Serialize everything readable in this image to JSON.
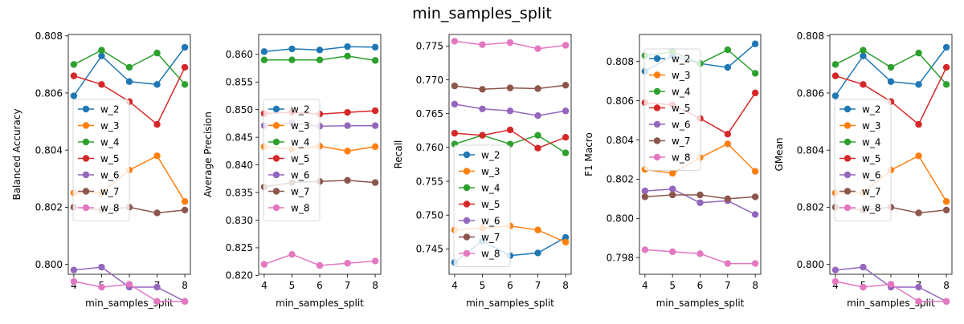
{
  "title": "min_samples_split",
  "colors": {
    "w_2": "#1f77b4",
    "w_3": "#ff7f0e",
    "w_4": "#2ca02c",
    "w_5": "#d62728",
    "w_6": "#9467bd",
    "w_7": "#8c564b",
    "w_8": "#e377c2"
  },
  "chart_data": [
    {
      "type": "line",
      "title": "",
      "xlabel": "min_samples_split",
      "ylabel": "Balanced Accuracy",
      "x": [
        4,
        5,
        6,
        7,
        8
      ],
      "xticks": [
        "4",
        "5",
        "6",
        "7",
        "8"
      ],
      "ylim": [
        0.79965,
        0.80805
      ],
      "yticks": [
        "0.800",
        "0.802",
        "0.804",
        "0.806",
        "0.808"
      ],
      "ytick_values": [
        0.8,
        0.802,
        0.804,
        0.806,
        0.808
      ],
      "legend": "center-left",
      "series": [
        {
          "name": "w_2",
          "values": [
            0.8059,
            0.8073,
            0.8064,
            0.8063,
            0.8076
          ]
        },
        {
          "name": "w_3",
          "values": [
            0.8025,
            0.8025,
            0.8033,
            0.8038,
            0.8022
          ]
        },
        {
          "name": "w_4",
          "values": [
            0.807,
            0.8075,
            0.8069,
            0.8074,
            0.8063
          ]
        },
        {
          "name": "w_5",
          "values": [
            0.8066,
            0.8063,
            0.8057,
            0.8049,
            0.8069
          ]
        },
        {
          "name": "w_6",
          "values": [
            0.7998,
            0.7999,
            0.7992,
            0.7992,
            0.7987
          ]
        },
        {
          "name": "w_7",
          "values": [
            0.802,
            0.8019,
            0.802,
            0.8018,
            0.8019
          ]
        },
        {
          "name": "w_8",
          "values": [
            0.7994,
            0.7992,
            0.7993,
            0.7987,
            0.7987
          ]
        }
      ]
    },
    {
      "type": "line",
      "title": "",
      "xlabel": "min_samples_split",
      "ylabel": "Average Precision",
      "x": [
        4,
        5,
        6,
        7,
        8
      ],
      "xticks": [
        "4",
        "5",
        "6",
        "7",
        "8"
      ],
      "ylim": [
        0.8202,
        0.8636
      ],
      "yticks": [
        "0.820",
        "0.825",
        "0.830",
        "0.835",
        "0.840",
        "0.845",
        "0.850",
        "0.855",
        "0.860"
      ],
      "ytick_values": [
        0.82,
        0.825,
        0.83,
        0.835,
        0.84,
        0.845,
        0.85,
        0.855,
        0.86
      ],
      "legend": "center-left",
      "series": [
        {
          "name": "w_2",
          "values": [
            0.8605,
            0.861,
            0.8608,
            0.8614,
            0.8613
          ]
        },
        {
          "name": "w_3",
          "values": [
            0.8433,
            0.8428,
            0.8434,
            0.8425,
            0.8433
          ]
        },
        {
          "name": "w_4",
          "values": [
            0.859,
            0.859,
            0.859,
            0.8597,
            0.8589
          ]
        },
        {
          "name": "w_5",
          "values": [
            0.8493,
            0.8495,
            0.8492,
            0.8495,
            0.8498
          ]
        },
        {
          "name": "w_6",
          "values": [
            0.8471,
            0.8476,
            0.847,
            0.8471,
            0.8471
          ]
        },
        {
          "name": "w_7",
          "values": [
            0.836,
            0.8368,
            0.837,
            0.8372,
            0.8368
          ]
        },
        {
          "name": "w_8",
          "values": [
            0.822,
            0.8238,
            0.8218,
            0.8222,
            0.8226
          ]
        }
      ]
    },
    {
      "type": "line",
      "title": "",
      "xlabel": "min_samples_split",
      "ylabel": "Recall",
      "x": [
        4,
        5,
        6,
        7,
        8
      ],
      "xticks": [
        "4",
        "5",
        "6",
        "7",
        "8"
      ],
      "ylim": [
        0.74125,
        0.7767
      ],
      "yticks": [
        "0.745",
        "0.750",
        "0.755",
        "0.760",
        "0.765",
        "0.770",
        "0.775"
      ],
      "ytick_values": [
        0.745,
        0.75,
        0.755,
        0.76,
        0.765,
        0.77,
        0.775
      ],
      "legend": "lower-left",
      "series": [
        {
          "name": "w_2",
          "values": [
            0.743,
            0.7462,
            0.744,
            0.7444,
            0.7467
          ]
        },
        {
          "name": "w_3",
          "values": [
            0.7478,
            0.7481,
            0.7484,
            0.7478,
            0.746
          ]
        },
        {
          "name": "w_4",
          "values": [
            0.7605,
            0.7618,
            0.7605,
            0.7618,
            0.7592
          ]
        },
        {
          "name": "w_5",
          "values": [
            0.7621,
            0.7618,
            0.7626,
            0.7599,
            0.7615
          ]
        },
        {
          "name": "w_6",
          "values": [
            0.7664,
            0.7657,
            0.7654,
            0.7647,
            0.7654
          ]
        },
        {
          "name": "w_7",
          "values": [
            0.7691,
            0.7686,
            0.7688,
            0.7687,
            0.7692
          ]
        },
        {
          "name": "w_8",
          "values": [
            0.7757,
            0.7752,
            0.7755,
            0.7746,
            0.7751
          ]
        }
      ]
    },
    {
      "type": "line",
      "title": "",
      "xlabel": "min_samples_split",
      "ylabel": "F1 Macro",
      "x": [
        4,
        5,
        6,
        7,
        8
      ],
      "xticks": [
        "4",
        "5",
        "6",
        "7",
        "8"
      ],
      "ylim": [
        0.79715,
        0.80938
      ],
      "yticks": [
        "0.798",
        "0.800",
        "0.802",
        "0.804",
        "0.806",
        "0.808"
      ],
      "ytick_values": [
        0.798,
        0.8,
        0.802,
        0.804,
        0.806,
        0.808
      ],
      "legend": "upper-left",
      "series": [
        {
          "name": "w_2",
          "values": [
            0.8075,
            0.8083,
            0.8079,
            0.8077,
            0.8089
          ]
        },
        {
          "name": "w_3",
          "values": [
            0.8025,
            0.8023,
            0.8031,
            0.8038,
            0.8024
          ]
        },
        {
          "name": "w_4",
          "values": [
            0.8083,
            0.8085,
            0.8079,
            0.8086,
            0.8074
          ]
        },
        {
          "name": "w_5",
          "values": [
            0.8059,
            0.8058,
            0.8051,
            0.8043,
            0.8064
          ]
        },
        {
          "name": "w_6",
          "values": [
            0.8014,
            0.8015,
            0.8008,
            0.8009,
            0.8002
          ]
        },
        {
          "name": "w_7",
          "values": [
            0.8011,
            0.8012,
            0.8012,
            0.801,
            0.8011
          ]
        },
        {
          "name": "w_8",
          "values": [
            0.7984,
            0.7983,
            0.7982,
            0.7977,
            0.7977
          ]
        }
      ]
    },
    {
      "type": "line",
      "title": "",
      "xlabel": "min_samples_split",
      "ylabel": "GMean",
      "x": [
        4,
        5,
        6,
        7,
        8
      ],
      "xticks": [
        "4",
        "5",
        "6",
        "7",
        "8"
      ],
      "ylim": [
        0.79965,
        0.80805
      ],
      "yticks": [
        "0.800",
        "0.802",
        "0.804",
        "0.806",
        "0.808"
      ],
      "ytick_values": [
        0.8,
        0.802,
        0.804,
        0.806,
        0.808
      ],
      "legend": "center-left",
      "series": [
        {
          "name": "w_2",
          "values": [
            0.8059,
            0.8073,
            0.8064,
            0.8063,
            0.8076
          ]
        },
        {
          "name": "w_3",
          "values": [
            0.8025,
            0.8025,
            0.8033,
            0.8038,
            0.8022
          ]
        },
        {
          "name": "w_4",
          "values": [
            0.807,
            0.8075,
            0.8069,
            0.8074,
            0.8063
          ]
        },
        {
          "name": "w_5",
          "values": [
            0.8066,
            0.8063,
            0.8057,
            0.8049,
            0.8069
          ]
        },
        {
          "name": "w_6",
          "values": [
            0.7998,
            0.7999,
            0.7992,
            0.7992,
            0.7987
          ]
        },
        {
          "name": "w_7",
          "values": [
            0.802,
            0.8019,
            0.802,
            0.8018,
            0.8019
          ]
        },
        {
          "name": "w_8",
          "values": [
            0.7994,
            0.7992,
            0.7993,
            0.7987,
            0.7987
          ]
        }
      ]
    }
  ]
}
